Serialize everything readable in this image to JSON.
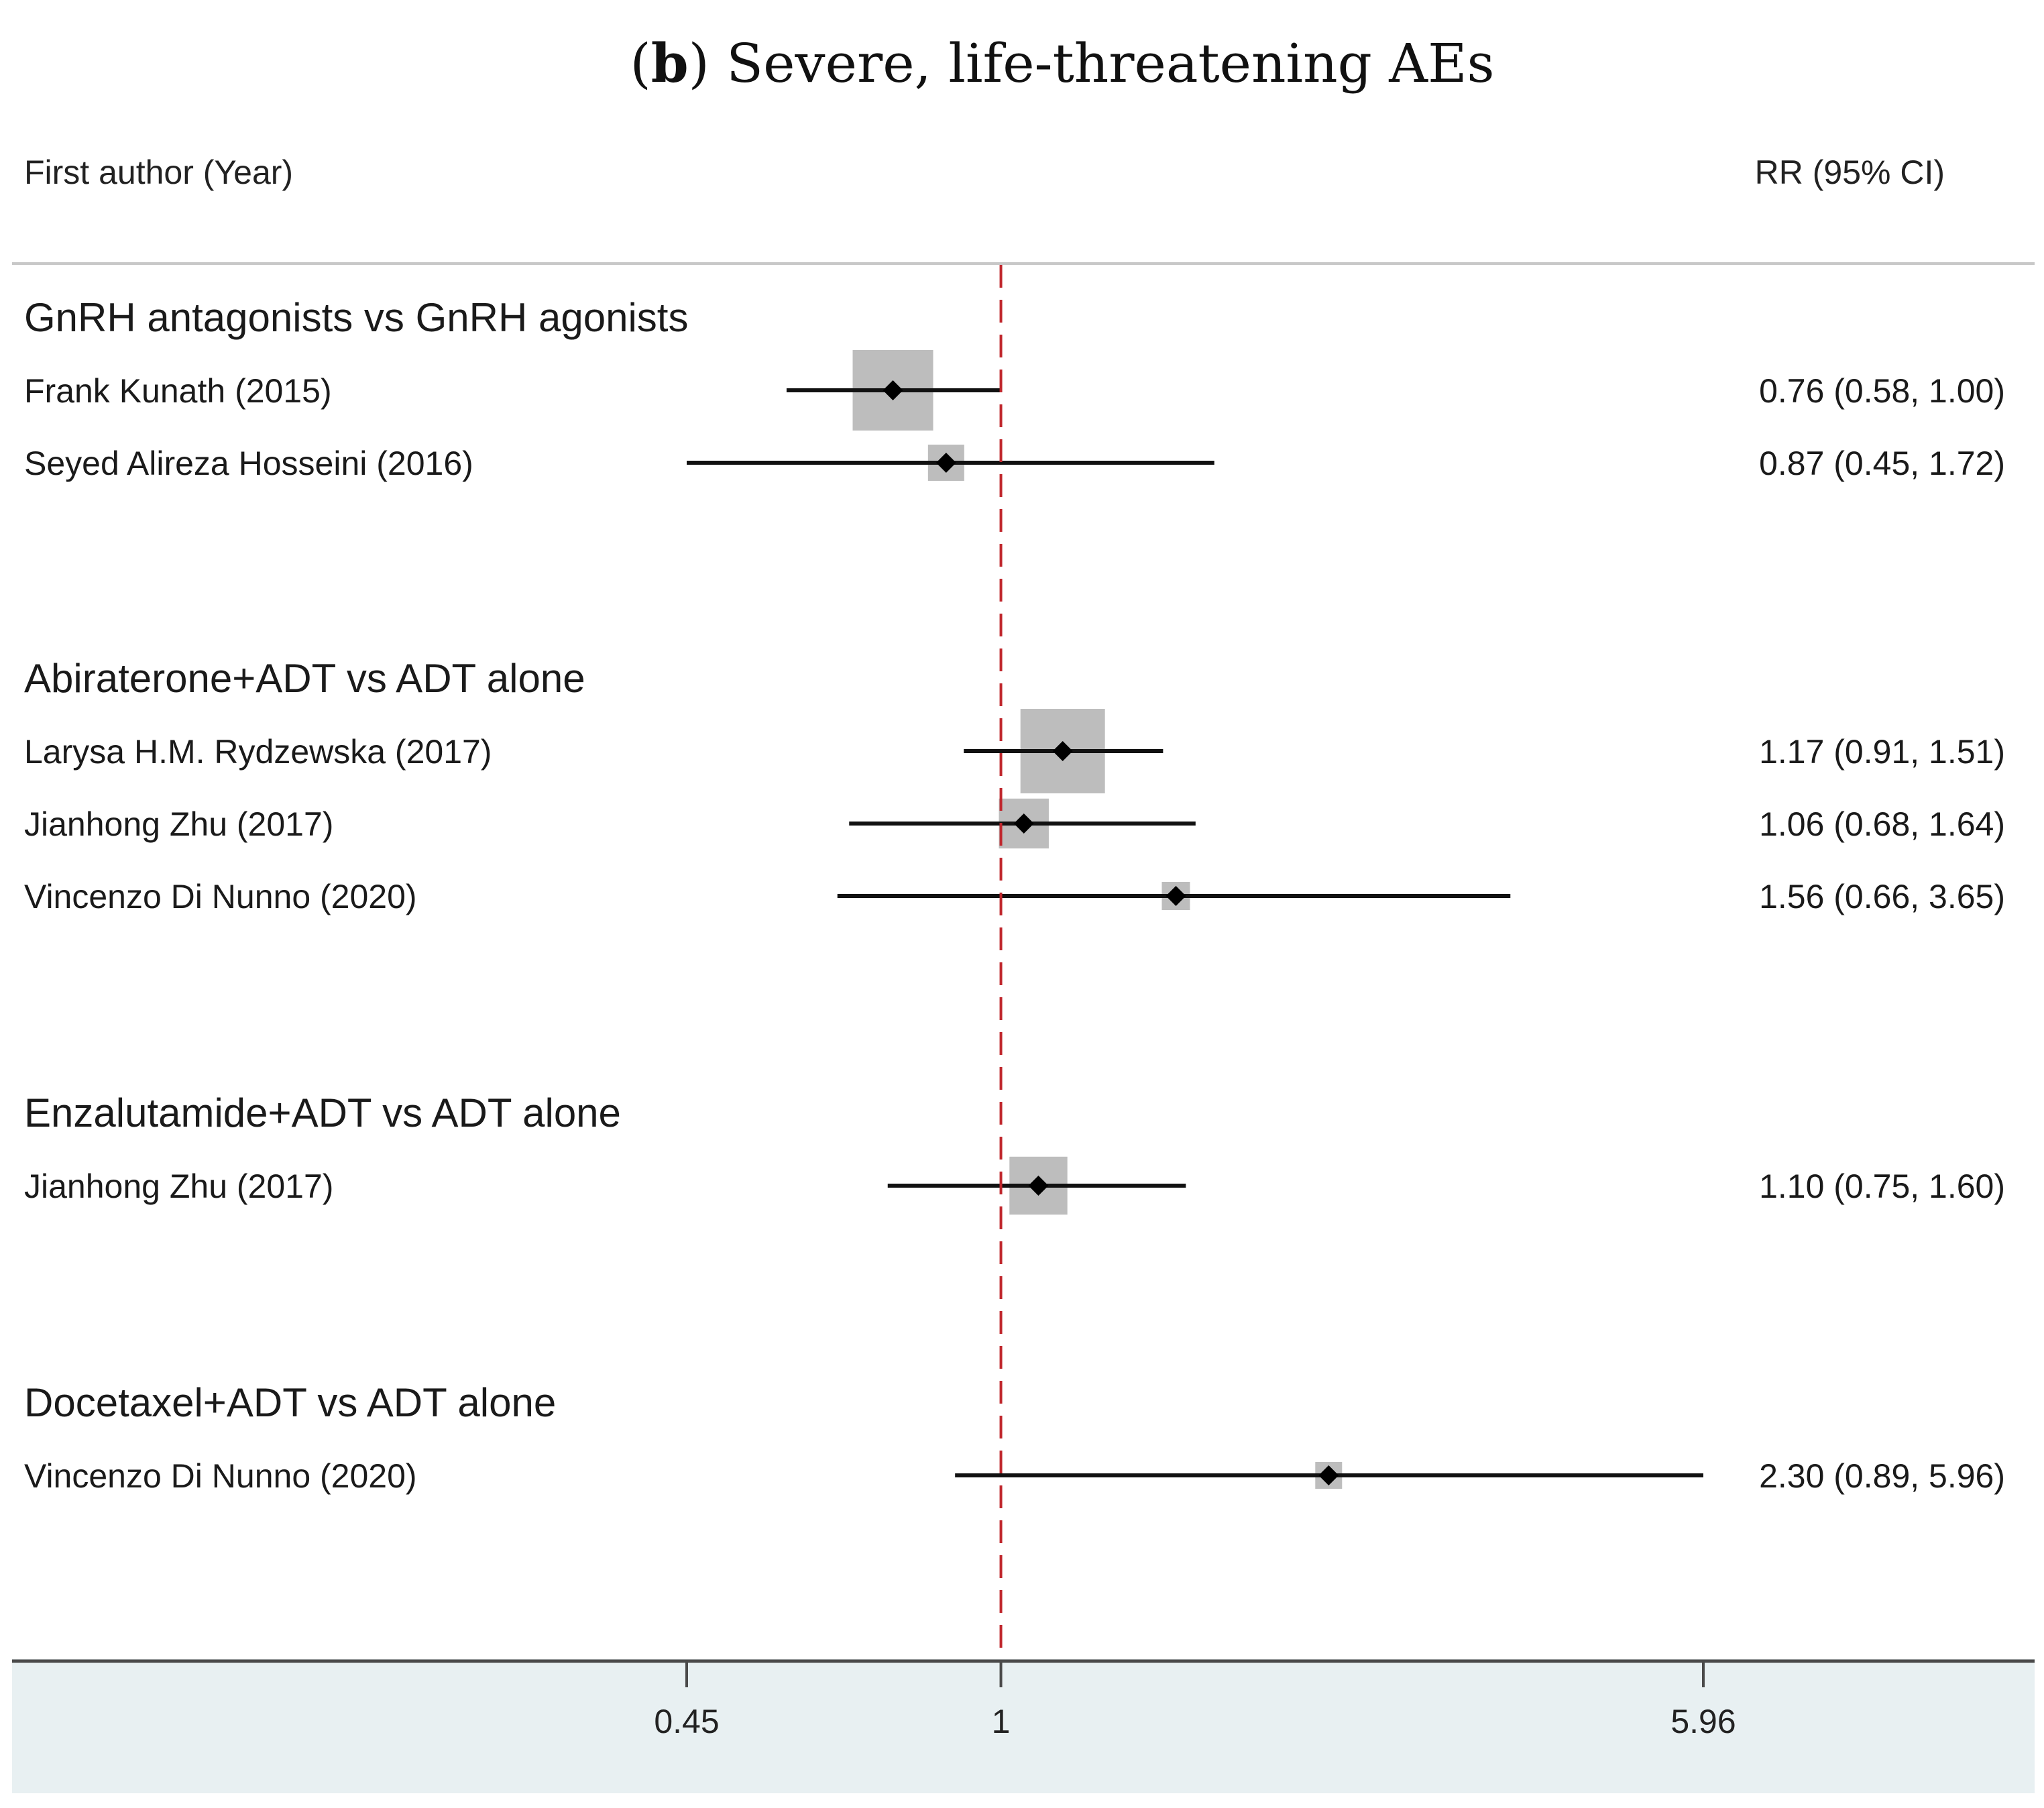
{
  "chart_data": {
    "type": "forest",
    "title_prefix": "(",
    "title_bold": "b",
    "title_rest": ") Severe, life-threatening AEs",
    "header_left": "First author (Year)",
    "header_right": "RR (95% CI)",
    "reference_value": 1,
    "axis_ticks": [
      {
        "value": 0.45,
        "label": "0.45"
      },
      {
        "value": 1,
        "label": "1"
      },
      {
        "value": 5.96,
        "label": "5.96"
      }
    ],
    "scale": "log",
    "groups": [
      {
        "label": "GnRH antagonists vs GnRH agonists",
        "studies": [
          {
            "label": "Frank Kunath (2015)",
            "rr": 0.76,
            "lo": 0.58,
            "hi": 1.0,
            "text": "0.76 (0.58, 1.00)",
            "weight": 1.0
          },
          {
            "label": "Seyed Alireza Hosseini (2016)",
            "rr": 0.87,
            "lo": 0.45,
            "hi": 1.72,
            "text": "0.87 (0.45, 1.72)",
            "weight": 0.45
          }
        ]
      },
      {
        "label": "Abiraterone+ADT vs ADT alone",
        "studies": [
          {
            "label": "Larysa H.M. Rydzewska (2017)",
            "rr": 1.17,
            "lo": 0.91,
            "hi": 1.51,
            "text": "1.17 (0.91, 1.51)",
            "weight": 1.05
          },
          {
            "label": "Jianhong Zhu (2017)",
            "rr": 1.06,
            "lo": 0.68,
            "hi": 1.64,
            "text": "1.06 (0.68, 1.64)",
            "weight": 0.62
          },
          {
            "label": "Vincenzo Di Nunno (2020)",
            "rr": 1.56,
            "lo": 0.66,
            "hi": 3.65,
            "text": "1.56 (0.66, 3.65)",
            "weight": 0.35
          }
        ]
      },
      {
        "label": "Enzalutamide+ADT vs ADT alone",
        "studies": [
          {
            "label": "Jianhong Zhu (2017)",
            "rr": 1.1,
            "lo": 0.75,
            "hi": 1.6,
            "text": "1.10 (0.75, 1.60)",
            "weight": 0.72
          }
        ]
      },
      {
        "label": "Docetaxel+ADT vs ADT alone",
        "studies": [
          {
            "label": "Vincenzo Di Nunno (2020)",
            "rr": 2.3,
            "lo": 0.89,
            "hi": 5.96,
            "text": "2.30 (0.89, 5.96)",
            "weight": 0.32
          }
        ]
      }
    ]
  },
  "colors": {
    "reference_line": "#c0272d",
    "box": "#bdbdbd",
    "axis_band": "#e8f0f2",
    "ink": "#111111",
    "separator": "#c8c8c8"
  }
}
